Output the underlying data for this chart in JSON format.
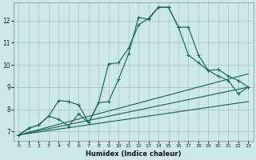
{
  "xlabel": "Humidex (Indice chaleur)",
  "bg_color": "#cce8e8",
  "line_color": "#1a6b5a",
  "grid_color": "#b0c8c8",
  "xlim": [
    -0.5,
    23.5
  ],
  "ylim": [
    6.6,
    12.8
  ],
  "xticks": [
    0,
    1,
    2,
    3,
    4,
    5,
    6,
    7,
    8,
    9,
    10,
    11,
    12,
    13,
    14,
    15,
    16,
    17,
    18,
    19,
    20,
    21,
    22,
    23
  ],
  "yticks": [
    7,
    8,
    9,
    10,
    11,
    12
  ],
  "line1_x": [
    0,
    1,
    2,
    3,
    4,
    5,
    5,
    6,
    7,
    8,
    9,
    10,
    11,
    12,
    13,
    14,
    15,
    16,
    17,
    18,
    19,
    20,
    21,
    22,
    23
  ],
  "line1_y": [
    6.85,
    7.15,
    7.3,
    7.7,
    8.4,
    8.35,
    8.35,
    8.2,
    7.4,
    8.3,
    10.05,
    10.1,
    10.75,
    11.8,
    12.1,
    12.6,
    12.6,
    11.7,
    11.7,
    10.45,
    9.75,
    9.8,
    9.5,
    9.3,
    9.0
  ],
  "line2_x": [
    0,
    1,
    2,
    3,
    4,
    5,
    6,
    7,
    8,
    9,
    10,
    11,
    12,
    13,
    14,
    15,
    16,
    17,
    18,
    19,
    20,
    21,
    22,
    23
  ],
  "line2_y": [
    6.85,
    7.15,
    7.3,
    7.7,
    7.55,
    7.25,
    7.8,
    7.4,
    8.3,
    8.35,
    9.35,
    10.5,
    12.15,
    12.05,
    12.6,
    12.6,
    11.7,
    10.45,
    10.1,
    9.75,
    9.5,
    9.3,
    8.7,
    9.0
  ],
  "line3_x": [
    0,
    23
  ],
  "line3_y": [
    6.85,
    8.35
  ],
  "line4_x": [
    0,
    23
  ],
  "line4_y": [
    6.85,
    9.0
  ],
  "line5_x": [
    0,
    23
  ],
  "line5_y": [
    6.85,
    9.6
  ]
}
